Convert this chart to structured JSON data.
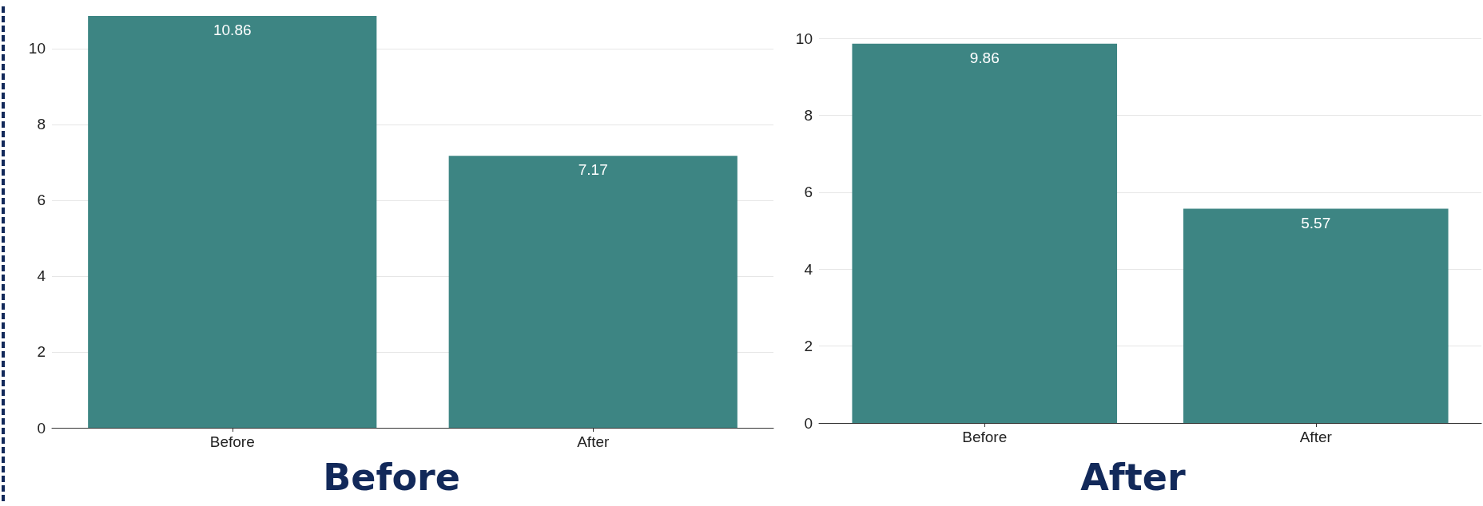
{
  "chart_data": [
    {
      "type": "bar",
      "title": "Before",
      "categories": [
        "Before",
        "After"
      ],
      "values": [
        10.86,
        7.17
      ],
      "color": "#3d8583",
      "ylim": [
        0,
        10.86
      ],
      "yticks": [
        0,
        2,
        4,
        6,
        8,
        10
      ],
      "grid": "y",
      "data_labels": true
    },
    {
      "type": "bar",
      "title": "After",
      "categories": [
        "Before",
        "After"
      ],
      "values": [
        9.86,
        5.57
      ],
      "color": "#3d8583",
      "ylim": [
        0,
        10
      ],
      "yticks": [
        0,
        2,
        4,
        6,
        8,
        10
      ],
      "grid": "y",
      "data_labels": true
    }
  ]
}
